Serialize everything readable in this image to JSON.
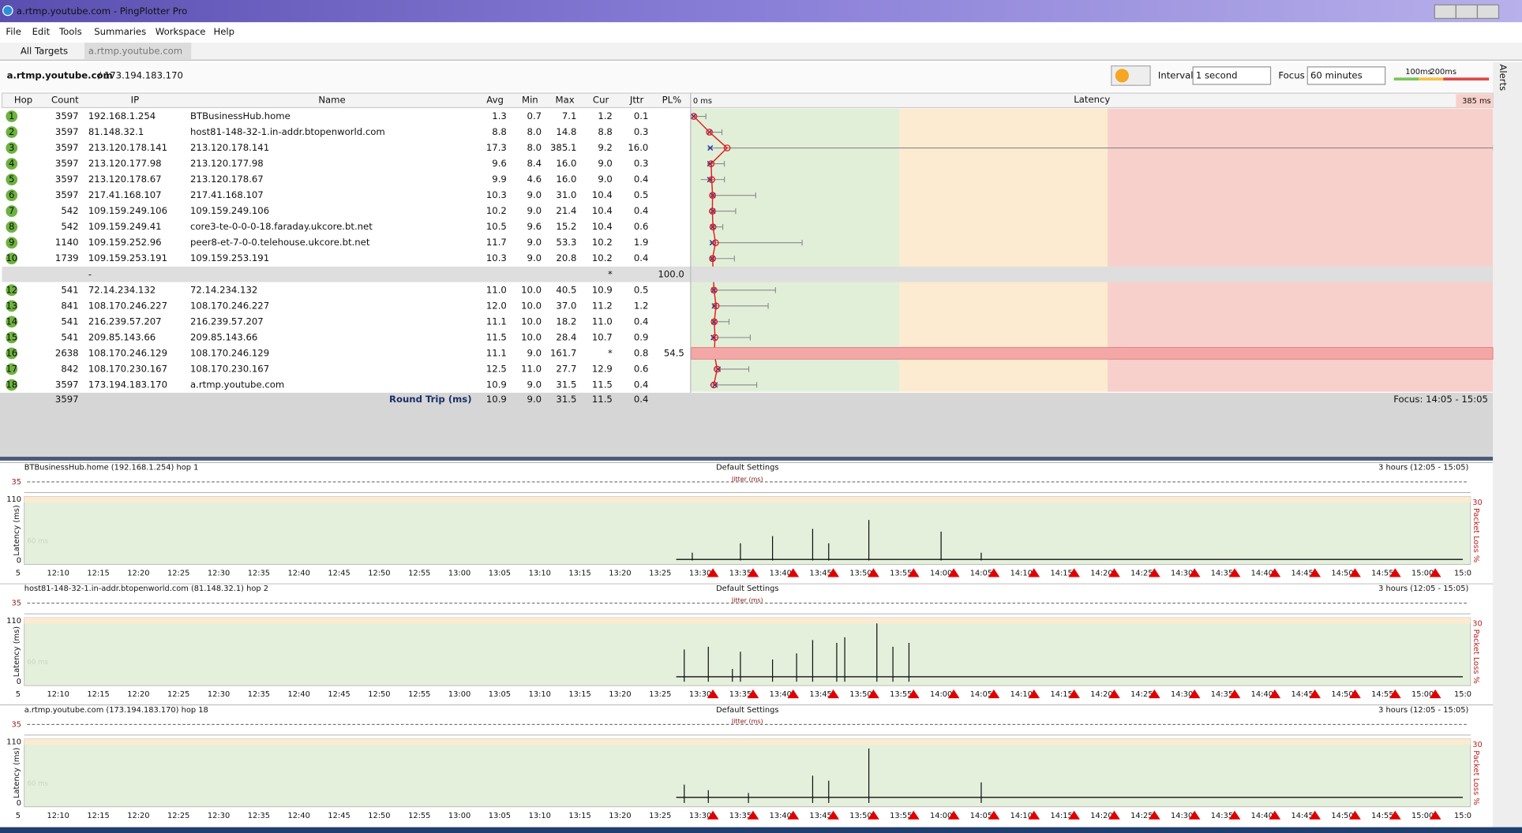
{
  "window": {
    "title": "a.rtmp.youtube.com - PingPlotter Pro",
    "menu": [
      "File",
      "Edit",
      "Tools",
      "Summaries",
      "Workspace",
      "Help"
    ],
    "tabs": [
      "All Targets",
      "a.rtmp.youtube.com"
    ]
  },
  "toolbar": {
    "target": "a.rtmp.youtube.com",
    "target_ip": "/ 173.194.183.170",
    "interval_label": "Interval",
    "interval": "1 second",
    "focus_label": "Focus",
    "focus": "60 minutes",
    "scale_labels": [
      {
        "value": 100,
        "label": "100ms"
      },
      {
        "value": 200,
        "label": "200ms"
      }
    ],
    "alerts": "Alerts"
  },
  "table": {
    "columns": [
      "Hop",
      "Count",
      "IP",
      "Name",
      "Avg",
      "Min",
      "Max",
      "Cur",
      "Jttr",
      "PL%"
    ],
    "rows": [
      [
        "1",
        "3597",
        "192.168.1.254",
        "BTBusinessHub.home",
        "1.3",
        "0.7",
        "7.1",
        "1.2",
        "0.1",
        null
      ],
      [
        "2",
        "3597",
        "81.148.32.1",
        "host81-148-32-1.in-addr.btopenworld.com",
        "8.8",
        "8.0",
        "14.8",
        "8.8",
        "0.3",
        null
      ],
      [
        "3",
        "3597",
        "213.120.178.141",
        "213.120.178.141",
        "17.3",
        "8.0",
        "385.1",
        "9.2",
        "16.0",
        null
      ],
      [
        "4",
        "3597",
        "213.120.177.98",
        "213.120.177.98",
        "9.6",
        "8.4",
        "16.0",
        "9.0",
        "0.3",
        null
      ],
      [
        "5",
        "3597",
        "213.120.178.67",
        "213.120.178.67",
        "9.9",
        "4.6",
        "16.0",
        "9.0",
        "0.4",
        null
      ],
      [
        "6",
        "3597",
        "217.41.168.107",
        "217.41.168.107",
        "10.3",
        "9.0",
        "31.0",
        "10.4",
        "0.5",
        null
      ],
      [
        "7",
        "542",
        "109.159.249.106",
        "109.159.249.106",
        "10.2",
        "9.0",
        "21.4",
        "10.4",
        "0.4",
        null
      ],
      [
        "8",
        "542",
        "109.159.249.41",
        "core3-te-0-0-0-18.faraday.ukcore.bt.net",
        "10.5",
        "9.6",
        "15.2",
        "10.4",
        "0.6",
        null
      ],
      [
        "9",
        "1140",
        "109.159.252.96",
        "peer8-et-7-0-0.telehouse.ukcore.bt.net",
        "11.7",
        "9.0",
        "53.3",
        "10.2",
        "1.9",
        null
      ],
      [
        "10",
        "1739",
        "109.159.253.191",
        "109.159.253.191",
        "10.3",
        "9.0",
        "20.8",
        "10.2",
        "0.4",
        null
      ],
      [
        null,
        null,
        "-",
        null,
        null,
        null,
        null,
        "*",
        null,
        "100.0"
      ],
      [
        "12",
        "541",
        "72.14.234.132",
        "72.14.234.132",
        "11.0",
        "10.0",
        "40.5",
        "10.9",
        "0.5",
        null
      ],
      [
        "13",
        "841",
        "108.170.246.227",
        "108.170.246.227",
        "12.0",
        "10.0",
        "37.0",
        "11.2",
        "1.2",
        null
      ],
      [
        "14",
        "541",
        "216.239.57.207",
        "216.239.57.207",
        "11.1",
        "10.0",
        "18.2",
        "11.0",
        "0.4",
        null
      ],
      [
        "15",
        "541",
        "209.85.143.66",
        "209.85.143.66",
        "11.5",
        "10.0",
        "28.4",
        "10.7",
        "0.9",
        null
      ],
      [
        "16",
        "2638",
        "108.170.246.129",
        "108.170.246.129",
        "11.1",
        "9.0",
        "161.7",
        "*",
        "0.8",
        "54.5"
      ],
      [
        "17",
        "842",
        "108.170.230.167",
        "108.170.230.167",
        "12.5",
        "11.0",
        "27.7",
        "12.9",
        "0.6",
        null
      ],
      [
        "18",
        "3597",
        "173.194.183.170",
        "a.rtmp.youtube.com",
        "10.9",
        "9.0",
        "31.5",
        "11.5",
        "0.4",
        null
      ]
    ],
    "summary": {
      "count": "3597",
      "label": "Round Trip (ms)",
      "avg": "10.9",
      "min": "9.0",
      "max": "31.5",
      "cur": "11.5",
      "jttr": "0.4"
    },
    "focus_range": "Focus: 14:05 - 15:05"
  },
  "latency_graph": {
    "title": "Latency",
    "xlim": [
      {
        "value": 0,
        "label": "0 ms"
      },
      {
        "value": 385,
        "label": "385 ms"
      }
    ]
  },
  "history": {
    "xlim": [
      "12:05",
      "15:05"
    ],
    "time_ticks": [
      {
        "value": "12:05",
        "label": "5"
      },
      "12:10",
      "12:15",
      "12:20",
      "12:25",
      "12:30",
      "12:35",
      "12:40",
      "12:45",
      "12:50",
      "12:55",
      "13:00",
      "13:05",
      "13:10",
      "13:15",
      "13:20",
      "13:25",
      "13:30",
      "13:35",
      "13:40",
      "13:45",
      "13:50",
      "13:55",
      "14:00",
      "14:05",
      "14:10",
      "14:15",
      "14:20",
      "14:25",
      "14:30",
      "14:35",
      "14:40",
      "14:45",
      "14:50",
      "14:55",
      "15:00",
      {
        "value": "15:05",
        "label": "15:0"
      }
    ],
    "panels": [
      {
        "title": "BTBusinessHub.home (192.168.1.254) hop 1",
        "settings": "Default Settings",
        "range": "3 hours (12:05 - 15:05)",
        "jitter_label": "Jitter (ms)",
        "jitter_tick": 35,
        "ylim": [
          0,
          110
        ],
        "yticks": [
          0,
          110
        ],
        "y_label": "Latency (ms)",
        "y2_label": "Packet Loss %",
        "y2_tick": 30,
        "guide": "60 ms",
        "spikes": {
          "x": [
            "13:29",
            "13:35",
            "13:39",
            "13:44",
            "13:46",
            "13:51",
            "14:00",
            "14:05"
          ],
          "values": [
            14,
            31,
            44,
            57,
            31,
            73,
            52,
            14
          ]
        },
        "baseline": {
          "x": [
            "13:27",
            "15:05"
          ],
          "values": [
            2,
            2
          ]
        }
      },
      {
        "title": "host81-148-32-1.in-addr.btopenworld.com (81.148.32.1) hop 2",
        "settings": "Default Settings",
        "range": "3 hours (12:05 - 15:05)",
        "jitter_label": "Jitter (ms)",
        "jitter_tick": 35,
        "ylim": [
          0,
          110
        ],
        "yticks": [
          0,
          110
        ],
        "y_label": "Latency (ms)",
        "y2_label": "Packet Loss %",
        "y2_tick": 30,
        "guide": "60 ms",
        "spikes": {
          "x": [
            "13:28",
            "13:31",
            "13:34",
            "13:35",
            "13:39",
            "13:42",
            "13:44",
            "13:47",
            "13:48",
            "13:52",
            "13:54",
            "13:56"
          ],
          "values": [
            58,
            63,
            23,
            54,
            40,
            51,
            75,
            70,
            80,
            105,
            63,
            70
          ]
        },
        "baseline": {
          "x": [
            "13:27",
            "15:05"
          ],
          "values": [
            9,
            9
          ]
        }
      },
      {
        "title": "a.rtmp.youtube.com (173.194.183.170) hop 18",
        "settings": "Default Settings",
        "range": "3 hours (12:05 - 15:05)",
        "jitter_label": "Jitter (ms)",
        "jitter_tick": 35,
        "ylim": [
          0,
          110
        ],
        "yticks": [
          0,
          110
        ],
        "y_label": "Latency (ms)",
        "y2_label": "Packet Loss %",
        "y2_tick": 30,
        "guide": "60 ms",
        "spikes": {
          "x": [
            "13:28",
            "13:31",
            "13:36",
            "13:44",
            "13:46",
            "13:51",
            "14:05"
          ],
          "values": [
            33,
            23,
            18,
            49,
            40,
            98,
            37
          ]
        },
        "baseline": {
          "x": [
            "13:27",
            "15:05"
          ],
          "values": [
            10,
            10
          ]
        }
      }
    ]
  }
}
